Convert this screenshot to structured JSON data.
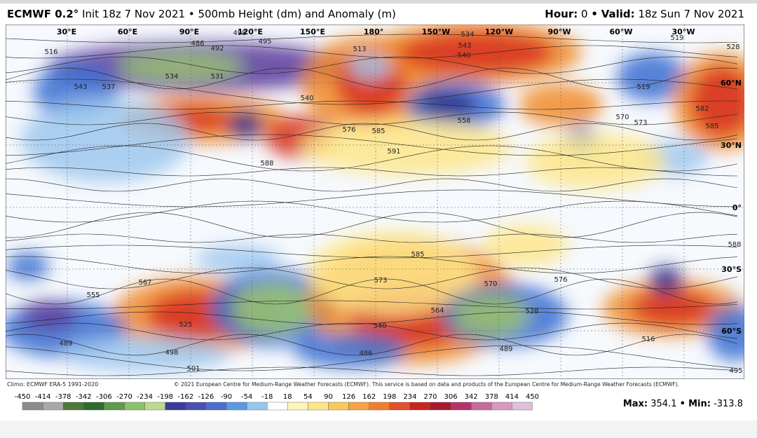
{
  "header": {
    "model": "ECMWF 0.2°",
    "title": "Init 18z 7 Nov 2021 • 500mb Height (dm) and Anomaly (m)",
    "hour_label": "Hour:",
    "hour": "0",
    "separator": "•",
    "valid_label": "Valid:",
    "valid": "18z Sun 7 Nov 2021"
  },
  "map": {
    "lon_labels": [
      "30°E",
      "60°E",
      "90°E",
      "120°E",
      "150°E",
      "180°",
      "150°W",
      "120°W",
      "90°W",
      "60°W",
      "30°W"
    ],
    "lat_labels": [
      "60°N",
      "30°N",
      "0°",
      "30°S",
      "60°S"
    ],
    "contour_labels": [
      "516",
      "537",
      "543",
      "498",
      "495",
      "486",
      "492",
      "531",
      "534",
      "540",
      "513",
      "534",
      "543",
      "540",
      "519",
      "528",
      "519",
      "570",
      "573",
      "582",
      "585",
      "558",
      "576",
      "585",
      "591",
      "588",
      "588",
      "567",
      "555",
      "525",
      "540",
      "564",
      "576",
      "528",
      "489",
      "498",
      "501",
      "486",
      "489",
      "516",
      "495",
      "585",
      "573",
      "570"
    ]
  },
  "footer": {
    "climo": "Climo: ECMWF ERA-5 1991-2020",
    "copyright": "© 2021 European Centre for Medium-Range Weather Forecasts (ECMWF). This service is based on data and products of the European Centre for Medium-Range Weather Forecasts (ECMWF)."
  },
  "colorbar": {
    "labels": [
      -450,
      -414,
      -378,
      -342,
      -306,
      -270,
      -234,
      -198,
      -162,
      -126,
      -90,
      -54,
      -18,
      18,
      54,
      90,
      126,
      162,
      198,
      234,
      270,
      306,
      342,
      378,
      414,
      450
    ]
  },
  "stats": {
    "max_label": "Max:",
    "max": "354.1",
    "separator": "•",
    "min_label": "Min:",
    "min": "-313.8"
  }
}
